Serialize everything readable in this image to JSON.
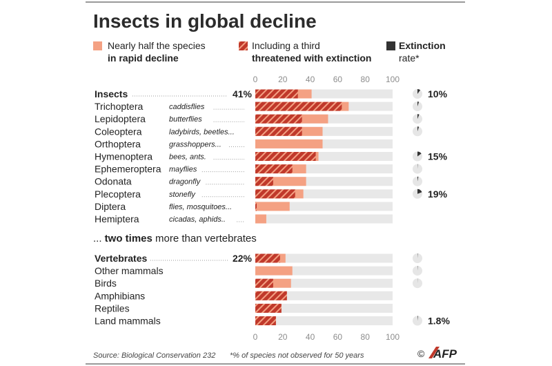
{
  "title": "Insects in global decline",
  "legend": {
    "rapid_decline": [
      "Nearly half the species",
      "in rapid decline"
    ],
    "threatened": [
      "Including a third",
      "threatened with extinction"
    ],
    "extinction_rate": [
      "Extinction",
      "rate*"
    ]
  },
  "subheading": {
    "prefix": "... ",
    "bold": "two times",
    "suffix": " more than vertebrates"
  },
  "footer": {
    "source": "Source: Biological Conservation 232",
    "note": "*% of species not observed for 50 years",
    "copyright": "©",
    "logo": "AFP"
  },
  "colors": {
    "decline": "#f4a183",
    "threatened": "#c0392b",
    "track": "#e8e8e8",
    "rate_pie": "#333333"
  },
  "chart_data": {
    "type": "bar",
    "xlim": [
      0,
      100
    ],
    "ticks": [
      "0",
      "20",
      "40",
      "60",
      "80",
      "100"
    ],
    "groups": [
      {
        "name": "insects",
        "rows": [
          {
            "name": "Insects",
            "common": "",
            "bold": true,
            "total_label": "41%",
            "decline": 41,
            "threatened": 31,
            "rate": 10,
            "rate_label": "10%"
          },
          {
            "name": "Trichoptera",
            "common": "caddisflies",
            "decline": 68,
            "threatened": 63,
            "rate": 5,
            "rate_label": ""
          },
          {
            "name": "Lepidoptera",
            "common": "butterflies",
            "decline": 53,
            "threatened": 34,
            "rate": 6,
            "rate_label": ""
          },
          {
            "name": "Coleoptera",
            "common": "ladybirds, beetles...",
            "decline": 49,
            "threatened": 34,
            "rate": 5,
            "rate_label": ""
          },
          {
            "name": "Orthoptera",
            "common": "grasshoppers...",
            "decline": 49,
            "threatened": 0,
            "rate": 0,
            "rate_label": ""
          },
          {
            "name": "Hymenoptera",
            "common": "bees, ants.",
            "decline": 46,
            "threatened": 44,
            "rate": 15,
            "rate_label": "15%"
          },
          {
            "name": "Ephemeroptera",
            "common": "mayflies",
            "decline": 37,
            "threatened": 27,
            "rate": 1,
            "rate_label": ""
          },
          {
            "name": "Odonata",
            "common": "dragonfly",
            "decline": 37,
            "threatened": 13,
            "rate": 3,
            "rate_label": ""
          },
          {
            "name": "Plecoptera",
            "common": "stonefly",
            "decline": 35,
            "threatened": 29,
            "rate": 19,
            "rate_label": "19%"
          },
          {
            "name": "Diptera",
            "common": "flies, mosquitoes...",
            "decline": 25,
            "threatened": 1,
            "rate": 0,
            "rate_label": ""
          },
          {
            "name": "Hemiptera",
            "common": "cicadas, aphids..",
            "decline": 8,
            "threatened": 0,
            "rate": 0,
            "rate_label": ""
          }
        ]
      },
      {
        "name": "vertebrates",
        "rows": [
          {
            "name": "Vertebrates",
            "common": "",
            "bold": true,
            "total_label": "22%",
            "decline": 22,
            "threatened": 18,
            "rate": 1,
            "rate_label": ""
          },
          {
            "name": "Other mammals",
            "common": "",
            "decline": 27,
            "threatened": 0,
            "rate": 1,
            "rate_label": ""
          },
          {
            "name": "Birds",
            "common": "",
            "decline": 26,
            "threatened": 13,
            "rate": 0.5,
            "rate_label": ""
          },
          {
            "name": "Amphibians",
            "common": "",
            "decline": 23,
            "threatened": 23,
            "rate": 0,
            "rate_label": ""
          },
          {
            "name": "Reptiles",
            "common": "",
            "decline": 19,
            "threatened": 19,
            "rate": 0,
            "rate_label": ""
          },
          {
            "name": "Land mammals",
            "common": "",
            "decline": 15,
            "threatened": 15,
            "rate": 1.8,
            "rate_label": "1.8%"
          }
        ]
      }
    ]
  }
}
